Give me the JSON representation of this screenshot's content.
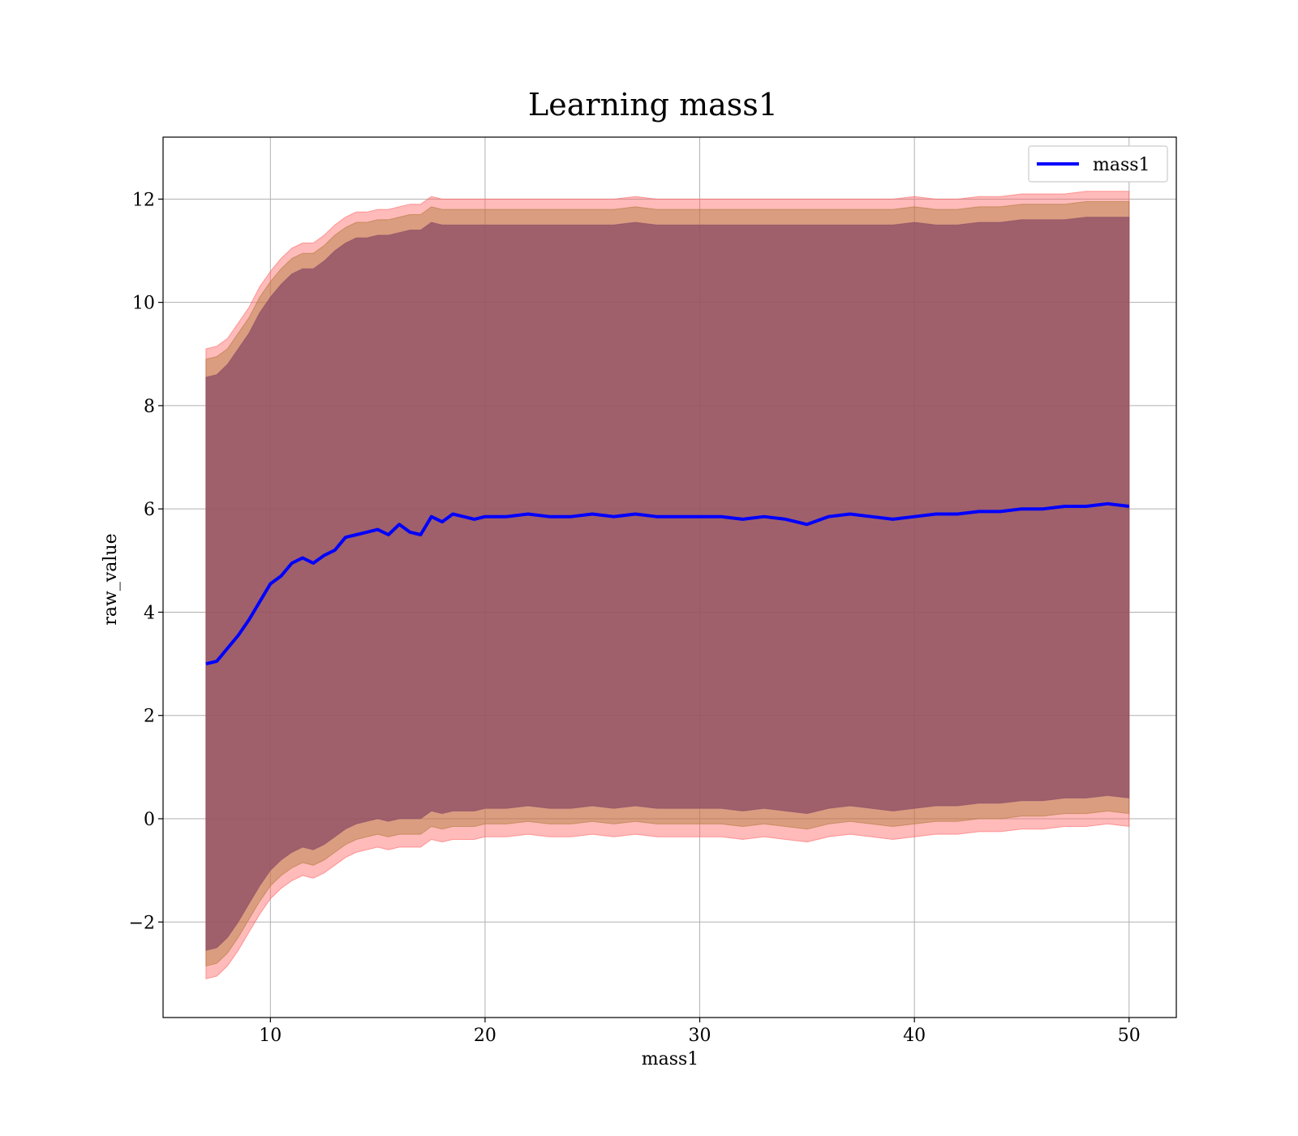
{
  "chart_data": {
    "type": "line",
    "title": "Learning mass1",
    "xlabel": "mass1",
    "ylabel": "raw_value",
    "xlim": [
      5,
      52.2
    ],
    "ylim": [
      -3.85,
      13.2
    ],
    "xticks": [
      10,
      20,
      30,
      40,
      50
    ],
    "xtick_labels": [
      "10",
      "20",
      "30",
      "40",
      "50"
    ],
    "yticks": [
      -2,
      0,
      2,
      4,
      6,
      8,
      10,
      12
    ],
    "ytick_labels": [
      "−2",
      "0",
      "2",
      "4",
      "6",
      "8",
      "10",
      "12"
    ],
    "grid": true,
    "legend": {
      "placement": "top-right",
      "entries": [
        "mass1"
      ]
    },
    "series": [
      {
        "name": "mass1",
        "color": "#0000ff",
        "x": [
          7,
          7.5,
          8,
          8.5,
          9,
          9.5,
          10,
          10.5,
          11,
          11.5,
          12,
          12.5,
          13,
          13.5,
          14,
          14.5,
          15,
          15.5,
          16,
          16.5,
          17,
          17.5,
          18,
          18.5,
          19,
          19.5,
          20,
          21,
          22,
          23,
          24,
          25,
          26,
          27,
          28,
          29,
          30,
          31,
          32,
          33,
          34,
          35,
          36,
          37,
          38,
          39,
          40,
          41,
          42,
          43,
          44,
          45,
          46,
          47,
          48,
          49,
          50
        ],
        "y": [
          3.0,
          3.05,
          3.3,
          3.55,
          3.85,
          4.2,
          4.55,
          4.7,
          4.95,
          5.05,
          4.95,
          5.1,
          5.2,
          5.45,
          5.5,
          5.55,
          5.6,
          5.5,
          5.7,
          5.55,
          5.5,
          5.85,
          5.75,
          5.9,
          5.85,
          5.8,
          5.85,
          5.85,
          5.9,
          5.85,
          5.85,
          5.9,
          5.85,
          5.9,
          5.85,
          5.85,
          5.85,
          5.85,
          5.8,
          5.85,
          5.8,
          5.7,
          5.85,
          5.9,
          5.85,
          5.8,
          5.85,
          5.9,
          5.9,
          5.95,
          5.95,
          6.0,
          6.0,
          6.05,
          6.05,
          6.1,
          6.05
        ]
      }
    ],
    "bands": [
      {
        "color": "#ff6666",
        "upper": [
          9.1,
          9.15,
          9.3,
          9.6,
          9.9,
          10.3,
          10.6,
          10.85,
          11.05,
          11.15,
          11.15,
          11.3,
          11.5,
          11.65,
          11.75,
          11.75,
          11.8,
          11.8,
          11.85,
          11.9,
          11.9,
          12.05,
          12.0,
          12.0,
          12.0,
          12.0,
          12.0,
          12.0,
          12.0,
          12.0,
          12.0,
          12.0,
          12.0,
          12.05,
          12.0,
          12.0,
          12.0,
          12.0,
          12.0,
          12.0,
          12.0,
          12.0,
          12.0,
          12.0,
          12.0,
          12.0,
          12.05,
          12.0,
          12.0,
          12.05,
          12.05,
          12.1,
          12.1,
          12.1,
          12.15,
          12.15,
          12.15
        ],
        "lower": [
          -3.1,
          -3.05,
          -2.85,
          -2.55,
          -2.2,
          -1.85,
          -1.55,
          -1.35,
          -1.2,
          -1.1,
          -1.15,
          -1.05,
          -0.9,
          -0.75,
          -0.65,
          -0.6,
          -0.55,
          -0.6,
          -0.55,
          -0.55,
          -0.55,
          -0.4,
          -0.45,
          -0.4,
          -0.4,
          -0.4,
          -0.35,
          -0.35,
          -0.3,
          -0.35,
          -0.35,
          -0.3,
          -0.35,
          -0.3,
          -0.35,
          -0.35,
          -0.35,
          -0.35,
          -0.4,
          -0.35,
          -0.4,
          -0.45,
          -0.35,
          -0.3,
          -0.35,
          -0.4,
          -0.35,
          -0.3,
          -0.3,
          -0.25,
          -0.25,
          -0.2,
          -0.2,
          -0.15,
          -0.15,
          -0.1,
          -0.15
        ]
      },
      {
        "color": "#b07a3a",
        "upper": [
          8.9,
          8.95,
          9.1,
          9.4,
          9.7,
          10.1,
          10.4,
          10.65,
          10.85,
          10.95,
          10.95,
          11.1,
          11.3,
          11.45,
          11.55,
          11.55,
          11.6,
          11.6,
          11.65,
          11.7,
          11.7,
          11.85,
          11.8,
          11.8,
          11.8,
          11.8,
          11.8,
          11.8,
          11.8,
          11.8,
          11.8,
          11.8,
          11.8,
          11.85,
          11.8,
          11.8,
          11.8,
          11.8,
          11.8,
          11.8,
          11.8,
          11.8,
          11.8,
          11.8,
          11.8,
          11.8,
          11.85,
          11.8,
          11.8,
          11.85,
          11.85,
          11.9,
          11.9,
          11.9,
          11.95,
          11.95,
          11.95
        ],
        "lower": [
          -2.85,
          -2.8,
          -2.6,
          -2.3,
          -1.95,
          -1.6,
          -1.3,
          -1.1,
          -0.95,
          -0.85,
          -0.9,
          -0.8,
          -0.65,
          -0.5,
          -0.4,
          -0.35,
          -0.3,
          -0.35,
          -0.3,
          -0.3,
          -0.3,
          -0.15,
          -0.2,
          -0.15,
          -0.15,
          -0.15,
          -0.1,
          -0.1,
          -0.05,
          -0.1,
          -0.1,
          -0.05,
          -0.1,
          -0.05,
          -0.1,
          -0.1,
          -0.1,
          -0.1,
          -0.15,
          -0.1,
          -0.15,
          -0.2,
          -0.1,
          -0.05,
          -0.1,
          -0.15,
          -0.1,
          -0.05,
          -0.05,
          0.0,
          0.0,
          0.05,
          0.05,
          0.1,
          0.1,
          0.15,
          0.1
        ]
      },
      {
        "color": "#8b4c66",
        "upper": [
          8.55,
          8.6,
          8.8,
          9.1,
          9.4,
          9.8,
          10.1,
          10.35,
          10.55,
          10.65,
          10.65,
          10.8,
          11.0,
          11.15,
          11.25,
          11.25,
          11.3,
          11.3,
          11.35,
          11.4,
          11.4,
          11.55,
          11.5,
          11.5,
          11.5,
          11.5,
          11.5,
          11.5,
          11.5,
          11.5,
          11.5,
          11.5,
          11.5,
          11.55,
          11.5,
          11.5,
          11.5,
          11.5,
          11.5,
          11.5,
          11.5,
          11.5,
          11.5,
          11.5,
          11.5,
          11.5,
          11.55,
          11.5,
          11.5,
          11.55,
          11.55,
          11.6,
          11.6,
          11.6,
          11.65,
          11.65,
          11.65
        ],
        "lower": [
          -2.55,
          -2.5,
          -2.3,
          -2.0,
          -1.65,
          -1.3,
          -1.0,
          -0.8,
          -0.65,
          -0.55,
          -0.6,
          -0.5,
          -0.35,
          -0.2,
          -0.1,
          -0.05,
          0.0,
          -0.05,
          0.0,
          0.0,
          0.0,
          0.15,
          0.1,
          0.15,
          0.15,
          0.15,
          0.2,
          0.2,
          0.25,
          0.2,
          0.2,
          0.25,
          0.2,
          0.25,
          0.2,
          0.2,
          0.2,
          0.2,
          0.15,
          0.2,
          0.15,
          0.1,
          0.2,
          0.25,
          0.2,
          0.15,
          0.2,
          0.25,
          0.25,
          0.3,
          0.3,
          0.35,
          0.35,
          0.4,
          0.4,
          0.45,
          0.4
        ]
      }
    ]
  }
}
